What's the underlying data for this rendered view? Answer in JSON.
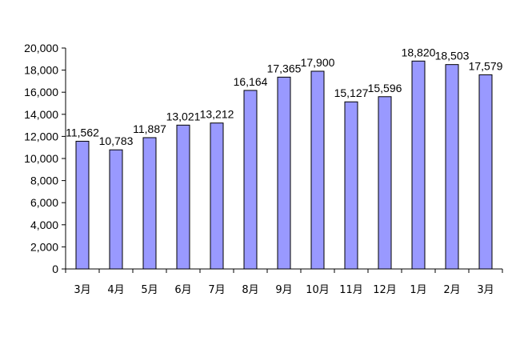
{
  "chart_data": {
    "type": "bar",
    "title": "",
    "xlabel": "",
    "ylabel": "",
    "categories": [
      "3月",
      "4月",
      "5月",
      "6月",
      "7月",
      "8月",
      "9月",
      "10月",
      "11月",
      "12月",
      "1月",
      "2月",
      "3月"
    ],
    "values": [
      11562,
      10783,
      11887,
      13021,
      13212,
      16164,
      17365,
      17900,
      15127,
      15596,
      18820,
      18503,
      17579
    ],
    "value_labels": [
      "11,562",
      "10,783",
      "11,887",
      "13,021",
      "13,212",
      "16,164",
      "17,365",
      "17,900",
      "15,127",
      "15,596",
      "18,820",
      "18,503",
      "17,579"
    ],
    "ylim": [
      0,
      20000
    ],
    "yticks": [
      0,
      2000,
      4000,
      6000,
      8000,
      10000,
      12000,
      14000,
      16000,
      18000,
      20000
    ],
    "ytick_labels": [
      "0",
      "2,000",
      "4,000",
      "6,000",
      "8,000",
      "10,000",
      "12,000",
      "14,000",
      "16,000",
      "18,000",
      "20,000"
    ],
    "grid": false,
    "legend": "none",
    "colors": {
      "bar_fill": "#9999ff",
      "bar_stroke": "#000000",
      "axis": "#000000",
      "text": "#000000"
    }
  }
}
